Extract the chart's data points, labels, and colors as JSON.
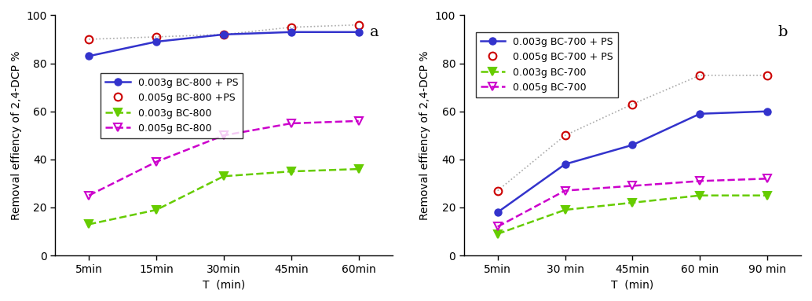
{
  "panel_a": {
    "title": "a",
    "xlabel": "T  (min)",
    "ylabel": "Removal effiency of 2,4-DCP %",
    "xtick_labels": [
      "5min",
      "15min",
      "30min",
      "45min",
      "60min"
    ],
    "ylim": [
      0,
      100
    ],
    "series": [
      {
        "label": "0.003g BC-800 + PS",
        "y": [
          83,
          89,
          92,
          93,
          93
        ],
        "color": "#3333cc",
        "linestyle": "-",
        "marker": "o",
        "markerfacecolor": "#3333cc",
        "markeredgecolor": "#3333cc",
        "linewidth": 1.8,
        "markersize": 6,
        "connect_line": true,
        "zorder": 3
      },
      {
        "label": "0.005g BC-800 +PS",
        "y": [
          90,
          91,
          92,
          95,
          96
        ],
        "color": "#aaaaaa",
        "linestyle": ":",
        "marker": "o",
        "markerfacecolor": "none",
        "markeredgecolor": "#cc0000",
        "linewidth": 1.2,
        "markersize": 7,
        "connect_line": false,
        "zorder": 2
      },
      {
        "label": "0.003g BC-800",
        "y": [
          13,
          19,
          33,
          35,
          36
        ],
        "color": "#66cc00",
        "linestyle": "--",
        "marker": "v",
        "markerfacecolor": "#66cc00",
        "markeredgecolor": "#66cc00",
        "linewidth": 1.8,
        "markersize": 7,
        "connect_line": true,
        "zorder": 2
      },
      {
        "label": "0.005g BC-800",
        "y": [
          25,
          39,
          50,
          55,
          56
        ],
        "color": "#cc00cc",
        "linestyle": "--",
        "marker": "v",
        "markerfacecolor": "none",
        "markeredgecolor": "#cc00cc",
        "linewidth": 1.8,
        "markersize": 7,
        "connect_line": true,
        "zorder": 2
      }
    ]
  },
  "panel_b": {
    "title": "b",
    "xlabel": "T  (min)",
    "ylabel": "Removal effiency of 2,4-DCP %",
    "xtick_labels": [
      "5min",
      "30 min",
      "45min",
      "60 min",
      "90 min"
    ],
    "ylim": [
      0,
      100
    ],
    "series": [
      {
        "label": "0.003g BC-700 + PS",
        "y": [
          18,
          38,
          46,
          59,
          60
        ],
        "color": "#3333cc",
        "linestyle": "-",
        "marker": "o",
        "markerfacecolor": "#3333cc",
        "markeredgecolor": "#3333cc",
        "linewidth": 1.8,
        "markersize": 6,
        "connect_line": true,
        "zorder": 3
      },
      {
        "label": "0.005g BC-700 + PS",
        "y": [
          27,
          50,
          63,
          75,
          75
        ],
        "color": "#aaaaaa",
        "linestyle": ":",
        "marker": "o",
        "markerfacecolor": "none",
        "markeredgecolor": "#cc0000",
        "linewidth": 1.2,
        "markersize": 7,
        "connect_line": false,
        "zorder": 2
      },
      {
        "label": "0.003g BC-700",
        "y": [
          9,
          19,
          22,
          25,
          25
        ],
        "color": "#66cc00",
        "linestyle": "--",
        "marker": "v",
        "markerfacecolor": "#66cc00",
        "markeredgecolor": "#66cc00",
        "linewidth": 1.8,
        "markersize": 7,
        "connect_line": true,
        "zorder": 2
      },
      {
        "label": "0.005g BC-700",
        "y": [
          12,
          27,
          29,
          31,
          32
        ],
        "color": "#cc00cc",
        "linestyle": "--",
        "marker": "v",
        "markerfacecolor": "none",
        "markeredgecolor": "#cc00cc",
        "linewidth": 1.8,
        "markersize": 7,
        "connect_line": true,
        "zorder": 2
      }
    ]
  },
  "background_color": "#ffffff",
  "legend_fontsize": 9,
  "axis_fontsize": 10,
  "title_fontsize": 14
}
